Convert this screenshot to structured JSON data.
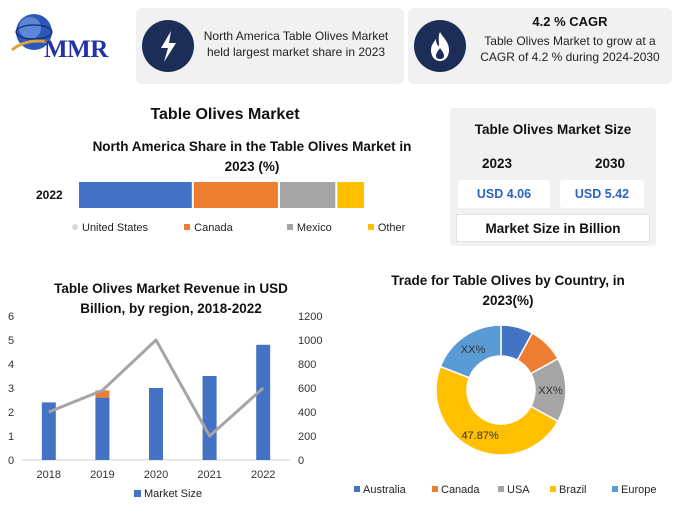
{
  "logo": {
    "text": "MMR",
    "icon": "globe-icon"
  },
  "highlight1": {
    "icon": "lightning-icon",
    "text": "North America Table Olives Market held largest market share in 2023"
  },
  "highlight2": {
    "icon": "flame-icon",
    "title": "4.2 % CAGR",
    "text": "Table Olives Market to grow at a CAGR of 4.2 % during 2024-2030"
  },
  "main_title": "Table Olives Market",
  "market_size": {
    "title": "Table Olives Market Size",
    "year1": "2023",
    "value1": "USD 4.06",
    "year2": "2030",
    "value2": "USD 5.42",
    "footer": "Market Size in Billion"
  },
  "na_share": {
    "title": "North America Share in the Table Olives Market in 2023 (%)",
    "year": "2022",
    "legend": [
      "United States",
      "Canada",
      "Mexico",
      "Other"
    ]
  },
  "revenue": {
    "title": "Table Olives Market Revenue in USD Billion, by region, 2018-2022",
    "legend": "Market Size"
  },
  "trade": {
    "title": "Trade for Table Olives by Country, in 2023(%)"
  },
  "colors": {
    "blue": "#4472c4",
    "orange": "#ed7d31",
    "gray": "#a5a5a5",
    "yellow": "#ffc000",
    "lightblue": "#5b9bd5",
    "navy": "#1c2e58"
  },
  "chart_data": [
    {
      "type": "bar",
      "stacked": true,
      "orientation": "horizontal",
      "title": "North America Share in the Table Olives Market in 2023 (%)",
      "categories": [
        "2022"
      ],
      "series": [
        {
          "name": "United States",
          "values": [
            40
          ],
          "color": "#4472c4"
        },
        {
          "name": "Canada",
          "values": [
            30
          ],
          "color": "#ed7d31"
        },
        {
          "name": "Mexico",
          "values": [
            20
          ],
          "color": "#a5a5a5"
        },
        {
          "name": "Other",
          "values": [
            10
          ],
          "color": "#ffc000"
        }
      ]
    },
    {
      "type": "bar",
      "title": "Table Olives Market Revenue in USD Billion, by region, 2018-2022",
      "categories": [
        "2018",
        "2019",
        "2020",
        "2021",
        "2022"
      ],
      "series": [
        {
          "name": "Market Size",
          "values": [
            2.4,
            2.6,
            3.0,
            3.5,
            4.8
          ],
          "color": "#4472c4"
        },
        {
          "name": "",
          "values": [
            0,
            0.3,
            0,
            0,
            0
          ],
          "color": "#ed7d31"
        },
        {
          "name": "",
          "axis": "right",
          "line": true,
          "values": [
            400,
            580,
            1000,
            200,
            600
          ],
          "color": "#a5a5a5"
        }
      ],
      "ylim": [
        0,
        6
      ],
      "yticks": [
        "0",
        "1",
        "2",
        "3",
        "4",
        "5",
        "6"
      ],
      "y2lim": [
        0,
        1200
      ],
      "y2ticks": [
        "0",
        "200",
        "400",
        "600",
        "800",
        "1000",
        "1200"
      ],
      "legend": "bottom"
    },
    {
      "type": "pie",
      "donut": true,
      "title": "Trade for Table Olives by Country, in 2023(%)",
      "categories": [
        "Australia",
        "Canada",
        "USA",
        "Brazil",
        "Europe"
      ],
      "values": [
        8,
        9,
        16,
        47.87,
        19.13
      ],
      "colors": [
        "#4472c4",
        "#ed7d31",
        "#a5a5a5",
        "#ffc000",
        "#5b9bd5"
      ],
      "data_labels": [
        "",
        "",
        "XX%",
        "47.87%",
        "XX%"
      ],
      "legend": "bottom"
    }
  ]
}
